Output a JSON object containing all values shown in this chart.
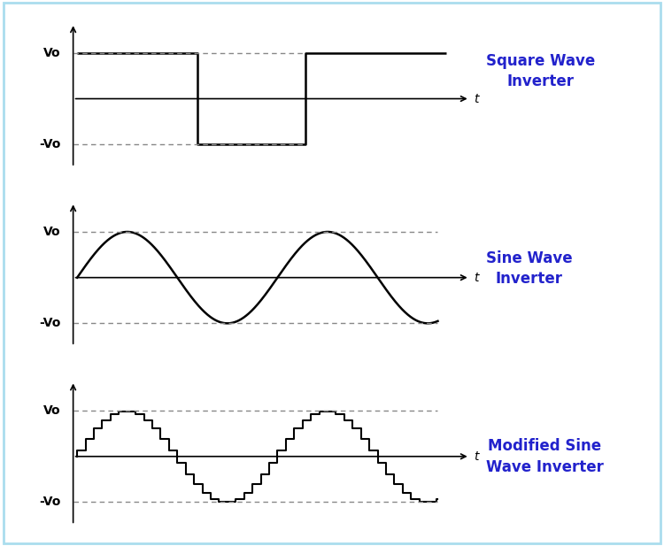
{
  "background_color": "#ffffff",
  "border_color": "#aaddee",
  "wave_color": "#000000",
  "label_color": "#2222cc",
  "dashed_color": "#888888",
  "fig_width": 7.5,
  "fig_height": 6.17,
  "square_label": "Square Wave\nInverter",
  "sine_label": "Sine Wave\nInverter",
  "modified_label": "Modified Sine\nWave Inverter",
  "t_label": "t",
  "vo_label": "Vo",
  "neg_vo_label": "-Vo",
  "label_fontsize": 12,
  "axis_label_fontsize": 10
}
